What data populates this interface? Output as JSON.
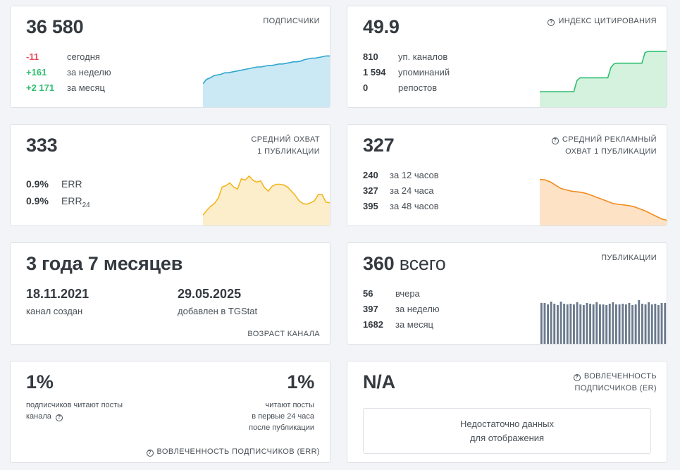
{
  "subscribers": {
    "value": "36 580",
    "label": "подписчики",
    "rows": [
      {
        "value": "-11",
        "text": "сегодня",
        "tone": "red"
      },
      {
        "value": "+161",
        "text": "за неделю",
        "tone": "green"
      },
      {
        "value": "+2 171",
        "text": "за месяц",
        "tone": "green"
      }
    ],
    "chart_data": {
      "type": "area",
      "color": "#2ea5cf",
      "fill": "#cbe9f5",
      "values": [
        32,
        38,
        40,
        43,
        44,
        45,
        47,
        47,
        48,
        49,
        50,
        51,
        52,
        53,
        54,
        55,
        55,
        56,
        57,
        57,
        58,
        59,
        59,
        60,
        61,
        62,
        62,
        63,
        65,
        66,
        67,
        67,
        68,
        69,
        70,
        70
      ]
    }
  },
  "citation": {
    "value": "49.9",
    "label": "индекс цитирования",
    "rows": [
      {
        "value": "810",
        "text": "уп. каналов"
      },
      {
        "value": "1 594",
        "text": "упоминаний"
      },
      {
        "value": "0",
        "text": "репостов"
      }
    ],
    "chart_data": {
      "type": "area",
      "color": "#2fbf71",
      "fill": "#d5f2df",
      "values": [
        22,
        22,
        22,
        22,
        22,
        22,
        22,
        22,
        22,
        22,
        22,
        22,
        38,
        42,
        42,
        42,
        42,
        42,
        42,
        42,
        42,
        42,
        42,
        57,
        62,
        63,
        63,
        63,
        63,
        63,
        63,
        63,
        63,
        63,
        78,
        80,
        80,
        80,
        80,
        80,
        80,
        80
      ]
    }
  },
  "reach": {
    "value": "333",
    "label_line1": "средний охват",
    "label_line2": "1 публикации",
    "err_rows": [
      {
        "value": "0.9%",
        "text": "ERR"
      },
      {
        "value": "0.9%",
        "text": "ERR",
        "sub": "24"
      }
    ],
    "chart_data": {
      "type": "area",
      "color": "#f2b61f",
      "fill": "#fdeecb",
      "values": [
        15,
        22,
        28,
        32,
        40,
        56,
        58,
        62,
        56,
        53,
        68,
        66,
        72,
        66,
        63,
        65,
        55,
        50,
        57,
        60,
        60,
        59,
        56,
        50,
        44,
        36,
        32,
        31,
        33,
        36,
        45,
        45,
        34,
        33
      ]
    }
  },
  "ad_reach": {
    "value": "327",
    "label_line1": "средний рекламный",
    "label_line2": "охват 1 публикации",
    "rows": [
      {
        "value": "240",
        "text": "за 12 часов"
      },
      {
        "value": "327",
        "text": "за 24 часа"
      },
      {
        "value": "395",
        "text": "за 48 часов"
      }
    ],
    "chart_data": {
      "type": "area",
      "color": "#f28c1e",
      "fill": "#fde2c6",
      "values": [
        70,
        69,
        66,
        61,
        56,
        54,
        52,
        51,
        50,
        48,
        45,
        42,
        39,
        36,
        33,
        32,
        31,
        30,
        28,
        25,
        22,
        18,
        14,
        10,
        8
      ]
    }
  },
  "age": {
    "value": "3 года 7 месяцев",
    "created_date": "18.11.2021",
    "created_label": "канал создан",
    "added_date": "29.05.2025",
    "added_label": "добавлен в TGStat",
    "label": "возраст канала"
  },
  "publications": {
    "value": "360",
    "value_suffix": "всего",
    "label": "публикации",
    "rows": [
      {
        "value": "56",
        "text": "вчера"
      },
      {
        "value": "397",
        "text": "за неделю"
      },
      {
        "value": "1682",
        "text": "за месяц"
      }
    ],
    "chart_data": {
      "type": "bar",
      "color": "#6b7a8d",
      "values": [
        58,
        58,
        56,
        60,
        57,
        55,
        60,
        57,
        56,
        57,
        56,
        59,
        56,
        55,
        58,
        57,
        56,
        59,
        56,
        56,
        55,
        57,
        59,
        56,
        56,
        57,
        56,
        58,
        55,
        56,
        62,
        57,
        56,
        59,
        56,
        57,
        55,
        58,
        58
      ]
    }
  },
  "err": {
    "left_value": "1%",
    "left_text_line1": "подписчиков читают посты",
    "left_text_line2": "канала",
    "right_value": "1%",
    "right_text_line1": "читают посты",
    "right_text_line2": "в первые 24 часа",
    "right_text_line3": "после публикации",
    "label": "вовлеченность подписчиков (ERR)"
  },
  "er": {
    "value": "N/A",
    "label_line1": "вовлеченность",
    "label_line2": "подписчиков (ER)",
    "empty_line1": "Недостаточно данных",
    "empty_line2": "для отображения"
  }
}
